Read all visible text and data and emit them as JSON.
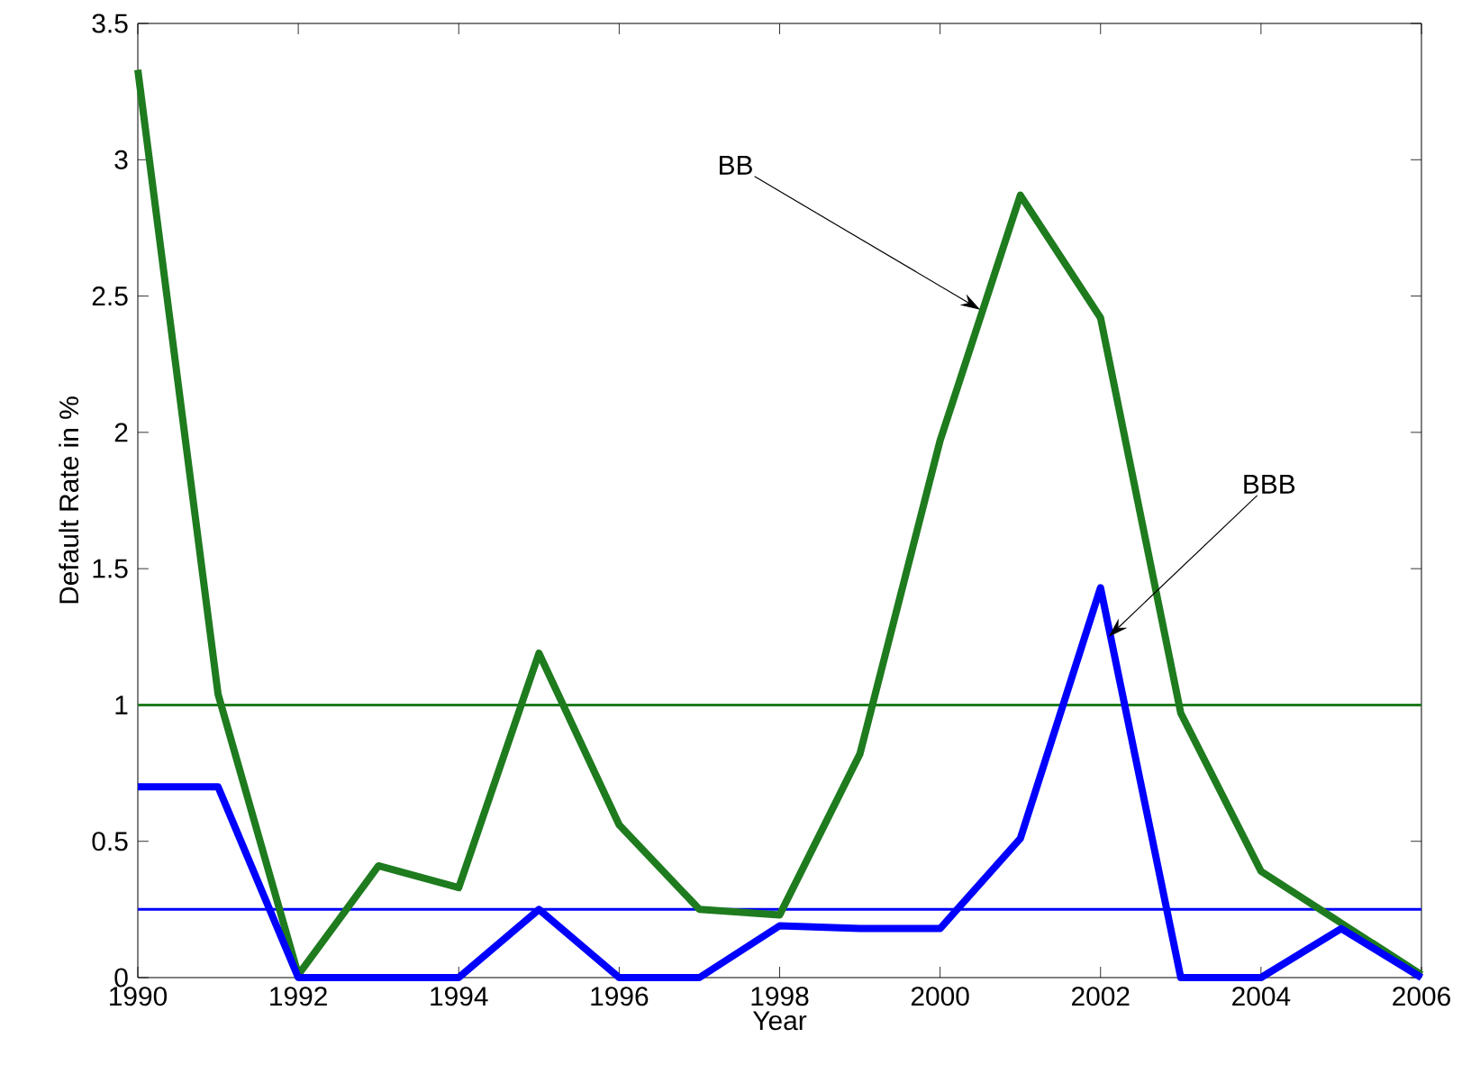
{
  "chart_data": {
    "type": "line",
    "xlabel": "Year",
    "ylabel": "Default Rate in %",
    "xlim": [
      1990,
      2006
    ],
    "ylim": [
      0,
      3.5
    ],
    "xticks": [
      1990,
      1992,
      1994,
      1996,
      1998,
      2000,
      2002,
      2004,
      2006
    ],
    "yticks": [
      0,
      0.5,
      1,
      1.5,
      2,
      2.5,
      3,
      3.5
    ],
    "grid": false,
    "x": [
      1990,
      1991,
      1992,
      1993,
      1994,
      1995,
      1996,
      1997,
      1998,
      1999,
      2000,
      2001,
      2002,
      2003,
      2004,
      2005,
      2006
    ],
    "series": [
      {
        "color": "#1e7b1e",
        "values": [
          3.33,
          1.04,
          0.01,
          0.41,
          0.33,
          1.19,
          0.56,
          0.25,
          0.23,
          0.82,
          1.97,
          2.87,
          2.42,
          0.97,
          0.39,
          0.2,
          0.01
        ]
      },
      {
        "color": "#0000ff",
        "values": [
          0.7,
          0.7,
          0,
          0,
          0,
          0.25,
          0,
          0,
          0.19,
          0.18,
          0.18,
          0.51,
          1.43,
          0,
          0,
          0.18,
          0
        ]
      }
    ],
    "ref_lines": [
      {
        "axis": "y",
        "value": 1.0,
        "color": "#1e7b1e"
      },
      {
        "axis": "y",
        "value": 0.25,
        "color": "#0000ff"
      }
    ],
    "annotations": [
      "BB",
      "BBB"
    ]
  }
}
